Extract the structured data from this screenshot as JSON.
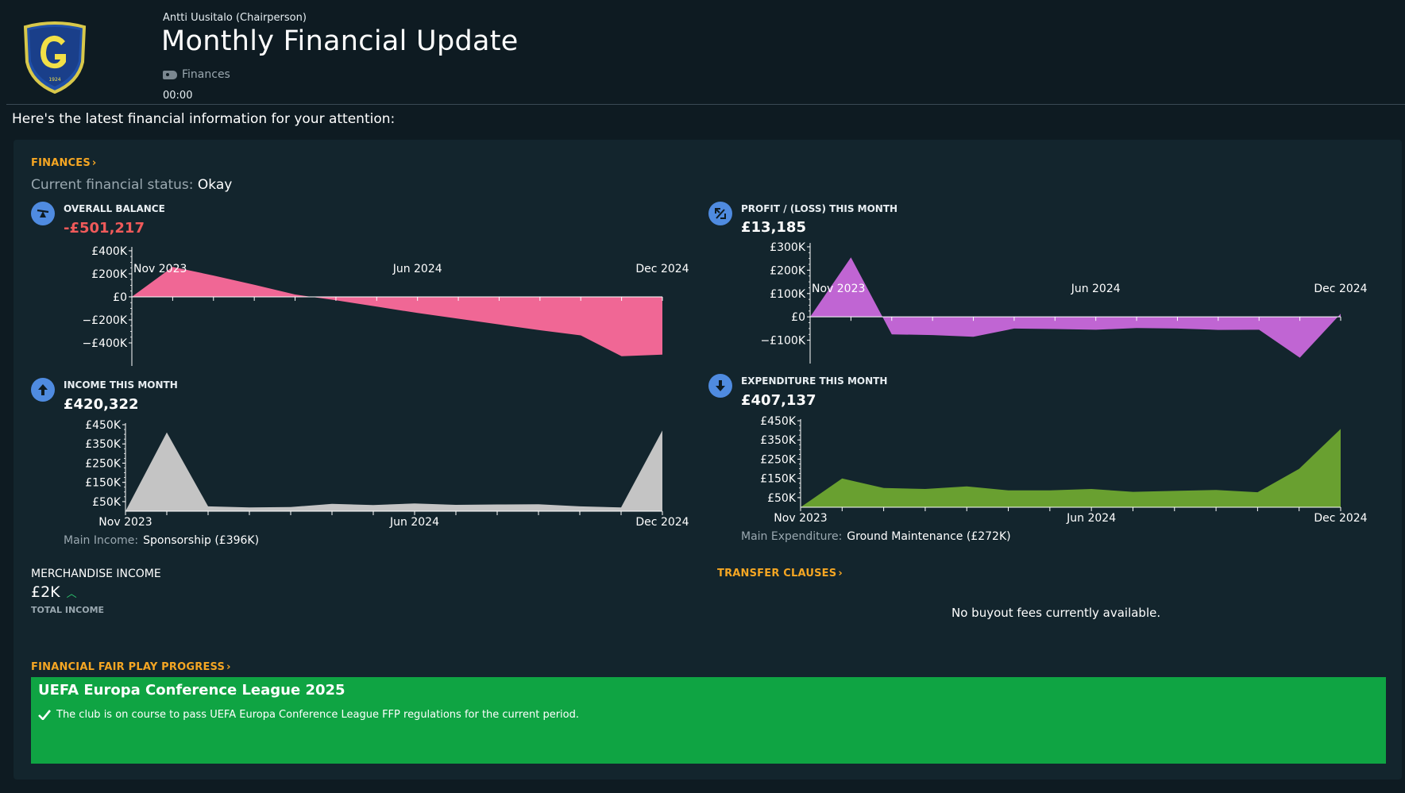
{
  "message": {
    "sender": "Antti Uusitalo  (Chairperson)",
    "title": "Monthly Financial Update",
    "tag": "Finances",
    "time": "00:00",
    "intro": "Here's the latest financial information for your attention:"
  },
  "finances": {
    "section_label": "FINANCES",
    "status_label": "Current financial status:",
    "status_value": "Okay"
  },
  "kpis": {
    "balance": {
      "label": "OVERALL BALANCE",
      "value": "-£501,217"
    },
    "profit": {
      "label": "PROFIT / (LOSS) THIS MONTH",
      "value": "£13,185"
    },
    "income": {
      "label": "INCOME THIS MONTH",
      "value": "£420,322",
      "main_label": "Main Income:",
      "main_value": "Sponsorship (£396K)"
    },
    "expenditure": {
      "label": "EXPENDITURE THIS MONTH",
      "value": "£407,137",
      "main_label": "Main Expenditure:",
      "main_value": "Ground Maintenance (£272K)"
    }
  },
  "chart_data": [
    {
      "id": "balance",
      "type": "area",
      "color": "#f06795",
      "x_labels": [
        "Nov 2023",
        "Jun 2024",
        "Dec 2024"
      ],
      "x_label_index": [
        0,
        7,
        13
      ],
      "y_ticks": [
        400000,
        200000,
        0,
        -200000,
        -400000
      ],
      "y_tick_labels": [
        "£400K",
        "£200K",
        "£0",
        "−£200K",
        "−£400K"
      ],
      "ylim": [
        -600000,
        420000
      ],
      "values": [
        0,
        260000,
        185000,
        105000,
        20000,
        -30000,
        -85000,
        -140000,
        -190000,
        -240000,
        -290000,
        -335000,
        -515000,
        -501217
      ]
    },
    {
      "id": "profit",
      "type": "area",
      "color": "#c065d3",
      "x_labels": [
        "Nov 2023",
        "Jun 2024",
        "Dec 2024"
      ],
      "x_label_index": [
        0,
        7,
        13
      ],
      "y_ticks": [
        300000,
        200000,
        100000,
        0,
        -100000
      ],
      "y_tick_labels": [
        "£300K",
        "£200K",
        "£100K",
        "£0",
        "−£100K"
      ],
      "ylim": [
        -200000,
        310000
      ],
      "values": [
        0,
        255000,
        -75000,
        -78000,
        -85000,
        -50000,
        -52000,
        -55000,
        -48000,
        -50000,
        -56000,
        -55000,
        -175000,
        13185
      ]
    },
    {
      "id": "income",
      "type": "area",
      "color": "#c4c4c4",
      "x_labels": [
        "Nov 2023",
        "Jun 2024",
        "Dec 2024"
      ],
      "x_label_index": [
        0,
        7,
        13
      ],
      "y_ticks": [
        450000,
        350000,
        250000,
        150000,
        50000
      ],
      "y_tick_labels": [
        "£450K",
        "£350K",
        "£250K",
        "£150K",
        "£50K"
      ],
      "ylim": [
        0,
        450000
      ],
      "values": [
        0,
        410000,
        25000,
        20000,
        22000,
        38000,
        32000,
        40000,
        33000,
        35000,
        36000,
        25000,
        20000,
        420322
      ]
    },
    {
      "id": "expenditure",
      "type": "area",
      "color": "#69a030",
      "x_labels": [
        "Nov 2023",
        "Jun 2024",
        "Dec 2024"
      ],
      "x_label_index": [
        0,
        7,
        13
      ],
      "y_ticks": [
        450000,
        350000,
        250000,
        150000,
        50000
      ],
      "y_tick_labels": [
        "£450K",
        "£350K",
        "£250K",
        "£150K",
        "£50K"
      ],
      "ylim": [
        0,
        450000
      ],
      "values": [
        0,
        150000,
        100000,
        95000,
        108000,
        88000,
        88000,
        95000,
        80000,
        85000,
        90000,
        78000,
        200000,
        407137
      ]
    }
  ],
  "merchandise": {
    "title": "MERCHANDISE INCOME",
    "value": "£2K",
    "trend_icon": "up-chevron-icon",
    "sub": "TOTAL INCOME"
  },
  "transfer": {
    "section_label": "TRANSFER CLAUSES",
    "empty_text": "No buyout fees currently available."
  },
  "ffp": {
    "section_label": "FINANCIAL FAIR PLAY PROGRESS",
    "competition": "UEFA Europa Conference League 2025",
    "text": "The club is on course to pass UEFA Europa Conference League FFP regulations for the current period.",
    "color": "#0fa443"
  }
}
